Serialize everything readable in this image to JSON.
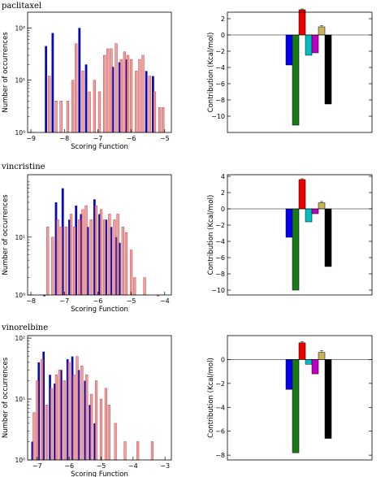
{
  "colors": {
    "blue_series": "#0a0ab4",
    "red_series": "#e87a7a",
    "red_edge": "#c84a4a",
    "overlap": "#5a0a5a",
    "contrib": [
      "#0000ee",
      "#1a7a1a",
      "#ee0000",
      "#00bfbf",
      "#bf00bf",
      "#c8b45a",
      "#000000"
    ]
  },
  "labels": {
    "hist_xlabel": "Scoring Function",
    "hist_ylabel": "Number of occurrences",
    "bar_ylabel": "Contribution (Kcal/mol)"
  },
  "chart_data": [
    {
      "type": "bar",
      "title": "paclitaxel",
      "subtype": "histogram",
      "yscale": "log",
      "xlabel": "Scoring Function",
      "ylabel": "Number of occurrences",
      "xlim": [
        -9.1,
        -4.8
      ],
      "ylim": [
        1,
        200
      ],
      "xticks": [
        -9,
        -8,
        -7,
        -6,
        -5
      ],
      "xtick_labels": [
        "−9",
        "−8",
        "−7",
        "−6",
        "−5"
      ],
      "yticks": [
        1,
        10,
        100
      ],
      "ytick_labels": [
        "10⁰",
        "10¹",
        "10²"
      ],
      "bin_width": 0.068,
      "series": [
        {
          "color_key": "blue_series",
          "x": [
            -8.55,
            -8.35,
            -7.55,
            -7.35,
            -6.55,
            -6.35,
            -6.15,
            -5.55,
            -5.35
          ],
          "counts": [
            45,
            80,
            100,
            20,
            18,
            22,
            25,
            15,
            12
          ]
        },
        {
          "color_key": "red_series",
          "x": [
            -8.45,
            -8.25,
            -8.1,
            -7.9,
            -7.75,
            -7.65,
            -7.45,
            -7.25,
            -7.1,
            -6.95,
            -6.8,
            -6.7,
            -6.6,
            -6.45,
            -6.3,
            -6.2,
            -6.1,
            -6.0,
            -5.85,
            -5.75,
            -5.65,
            -5.45,
            -5.3,
            -5.15,
            -5.05
          ],
          "counts": [
            12,
            4,
            4,
            4,
            10,
            50,
            15,
            6,
            10,
            6,
            30,
            40,
            40,
            50,
            25,
            35,
            30,
            25,
            15,
            25,
            30,
            12,
            6,
            3,
            3
          ]
        }
      ]
    },
    {
      "type": "bar",
      "title": "paclitaxel",
      "subtype": "contribution",
      "ylabel": "Contribution (Kcal/mol)",
      "ylim": [
        -12,
        2.8
      ],
      "yticks": [
        2,
        0,
        -2,
        -4,
        -6,
        -8,
        -10
      ],
      "values": [
        -3.7,
        -11.1,
        3.1,
        -2.5,
        -2.2,
        1.0,
        -8.5
      ],
      "errors": [
        0,
        0,
        0.1,
        0,
        0,
        0.15,
        0
      ]
    },
    {
      "type": "bar",
      "title": "vincristine",
      "subtype": "histogram",
      "yscale": "log",
      "xlabel": "Scoring Function",
      "ylabel": "Number of occurrences",
      "xlim": [
        -8.1,
        -3.8
      ],
      "ylim": [
        1,
        120
      ],
      "xticks": [
        -8,
        -7,
        -6,
        -5,
        -4
      ],
      "xtick_labels": [
        "−8",
        "−7",
        "−6",
        "−5",
        "−4"
      ],
      "yticks": [
        1,
        10
      ],
      "ytick_labels": [
        "10⁰",
        "10¹"
      ],
      "bin_width": 0.068,
      "series": [
        {
          "color_key": "blue_series",
          "x": [
            -7.6,
            -7.25,
            -7.05,
            -6.85,
            -6.65,
            -6.5,
            -6.3,
            -6.1,
            -5.95,
            -5.75,
            -5.6,
            -5.45,
            -5.35
          ],
          "counts": [
            1,
            40,
            70,
            20,
            35,
            25,
            15,
            45,
            25,
            20,
            15,
            10,
            8
          ]
        },
        {
          "color_key": "red_series",
          "x": [
            -7.5,
            -7.35,
            -7.2,
            -7.1,
            -6.95,
            -6.8,
            -6.7,
            -6.55,
            -6.45,
            -6.35,
            -6.2,
            -6.05,
            -5.9,
            -5.8,
            -5.65,
            -5.5,
            -5.4,
            -5.25,
            -5.15,
            -5.0,
            -4.9,
            -4.6,
            -4.2
          ],
          "counts": [
            15,
            10,
            20,
            15,
            15,
            25,
            15,
            20,
            30,
            35,
            20,
            35,
            30,
            20,
            25,
            20,
            25,
            15,
            12,
            6,
            2,
            2,
            1
          ]
        }
      ]
    },
    {
      "type": "bar",
      "title": "vincristine",
      "subtype": "contribution",
      "ylabel": "Contribution (Kcal/mol)",
      "ylim": [
        -10.6,
        4.2
      ],
      "yticks": [
        4,
        2,
        0,
        -2,
        -4,
        -6,
        -8,
        -10
      ],
      "values": [
        -3.5,
        -10.0,
        3.6,
        -1.6,
        -0.6,
        0.75,
        -7.1
      ],
      "errors": [
        0,
        0,
        0.1,
        0,
        0,
        0.15,
        0
      ]
    },
    {
      "type": "bar",
      "title": "vinorelbine",
      "subtype": "histogram",
      "yscale": "log",
      "xlabel": "Scoring Function",
      "ylabel": "Number of occurrences",
      "xlim": [
        -7.3,
        -2.8
      ],
      "ylim": [
        1,
        110
      ],
      "xticks": [
        -7,
        -6,
        -5,
        -4,
        -3
      ],
      "xtick_labels": [
        "−7",
        "−6",
        "−5",
        "−4",
        "−3"
      ],
      "yticks": [
        1,
        10,
        100
      ],
      "ytick_labels": [
        "10⁰",
        "10¹",
        "10²"
      ],
      "bin_width": 0.068,
      "series": [
        {
          "color_key": "blue_series",
          "x": [
            -7.15,
            -6.95,
            -6.8,
            -6.6,
            -6.45,
            -6.25,
            -6.05,
            -5.9,
            -5.7,
            -5.5,
            -5.35,
            -5.2
          ],
          "counts": [
            2,
            40,
            60,
            25,
            18,
            30,
            45,
            50,
            30,
            20,
            8,
            4
          ]
        },
        {
          "color_key": "red_series",
          "x": [
            -7.1,
            -7.0,
            -6.85,
            -6.7,
            -6.55,
            -6.4,
            -6.3,
            -6.15,
            -6.0,
            -5.85,
            -5.75,
            -5.6,
            -5.45,
            -5.3,
            -5.15,
            -5.0,
            -4.85,
            -4.75,
            -4.55,
            -4.25,
            -3.85,
            -3.4
          ],
          "counts": [
            6,
            20,
            45,
            8,
            15,
            25,
            30,
            20,
            40,
            25,
            50,
            35,
            25,
            12,
            20,
            10,
            15,
            8,
            4,
            2,
            2,
            2
          ]
        }
      ]
    },
    {
      "type": "bar",
      "title": "vinorelbine",
      "subtype": "contribution",
      "ylabel": "Contribution (Kcal/mol)",
      "ylim": [
        -8.4,
        2.0
      ],
      "yticks": [
        0,
        -2,
        -4,
        -6,
        -8
      ],
      "values": [
        -2.5,
        -7.8,
        1.4,
        -0.4,
        -1.2,
        0.6,
        -6.6
      ],
      "errors": [
        0,
        0,
        0.1,
        0,
        0,
        0.15,
        0
      ]
    }
  ]
}
